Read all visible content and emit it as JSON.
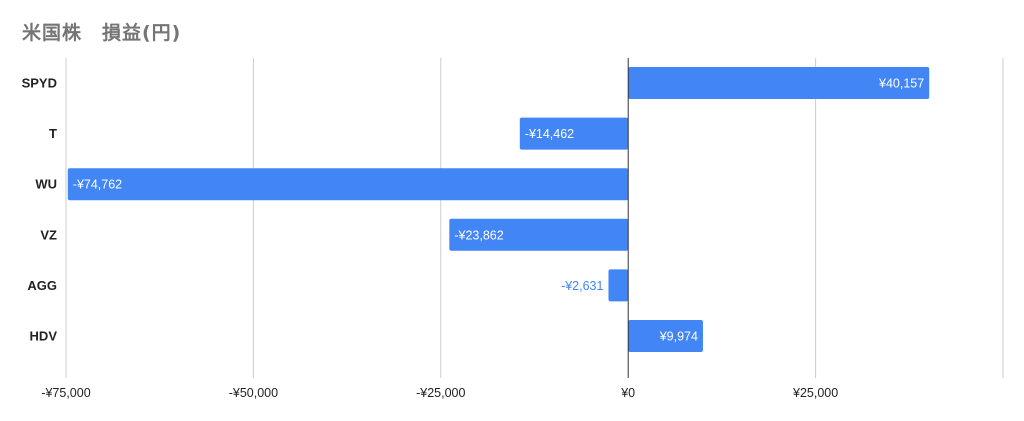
{
  "chart_data": {
    "type": "bar",
    "orientation": "horizontal",
    "title": "米国株　損益(円)",
    "xlabel": "",
    "ylabel": "",
    "categories": [
      "SPYD",
      "T",
      "WU",
      "VZ",
      "AGG",
      "HDV"
    ],
    "series": [
      {
        "values": [
          40157,
          -14462,
          -74762,
          -23862,
          -2631,
          9974
        ],
        "data_labels": [
          "¥40,157",
          "-¥14,462",
          "-¥74,762",
          "-¥23,862",
          "-¥2,631",
          "¥9,974"
        ]
      }
    ],
    "xlim": [
      -75000,
      50000
    ],
    "x_ticks": [
      -75000,
      -50000,
      -25000,
      0,
      25000,
      50000
    ],
    "x_tick_labels": [
      "-¥75,000",
      "-¥50,000",
      "-¥25,000",
      "¥0",
      "¥25,000",
      ""
    ],
    "grid": true,
    "legend": "none",
    "colors": {
      "bar": "#4285f4",
      "grid": "#cccccc",
      "zero_line": "#333333",
      "title": "#757575",
      "label_inside": "#ffffff",
      "label_outside": "#4285f4",
      "text": "#222222"
    }
  }
}
